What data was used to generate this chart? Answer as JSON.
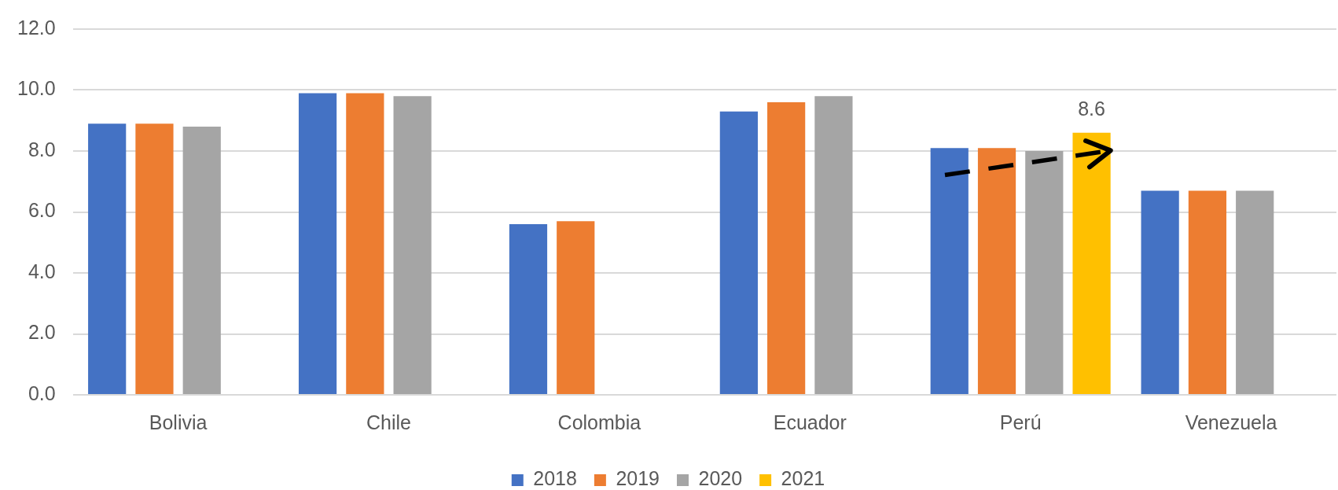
{
  "chart_data": {
    "type": "bar",
    "categories": [
      "Bolivia",
      "Chile",
      "Colombia",
      "Ecuador",
      "Perú",
      "Venezuela"
    ],
    "series": [
      {
        "name": "2018",
        "color": "#4472c4",
        "values": [
          8.9,
          9.9,
          5.6,
          9.3,
          8.1,
          6.7
        ]
      },
      {
        "name": "2019",
        "color": "#ed7d31",
        "values": [
          8.9,
          9.9,
          5.7,
          9.6,
          8.1,
          6.7
        ]
      },
      {
        "name": "2020",
        "color": "#a5a5a5",
        "values": [
          8.8,
          9.8,
          null,
          9.8,
          8.0,
          6.7
        ]
      },
      {
        "name": "2021",
        "color": "#ffc000",
        "values": [
          null,
          null,
          null,
          null,
          8.6,
          null
        ],
        "value_labels": [
          null,
          null,
          null,
          null,
          "8.6",
          null
        ]
      }
    ],
    "ylim": [
      0,
      12
    ],
    "yticks": [
      {
        "value": 0,
        "label": "0.0"
      },
      {
        "value": 2,
        "label": "2.0"
      },
      {
        "value": 4,
        "label": "4.0"
      },
      {
        "value": 6,
        "label": "6.0"
      },
      {
        "value": 8,
        "label": "8.0"
      },
      {
        "value": 10,
        "label": "10.0"
      },
      {
        "value": 12,
        "label": "12.0"
      }
    ],
    "grid": "y",
    "legend": "bottom"
  }
}
